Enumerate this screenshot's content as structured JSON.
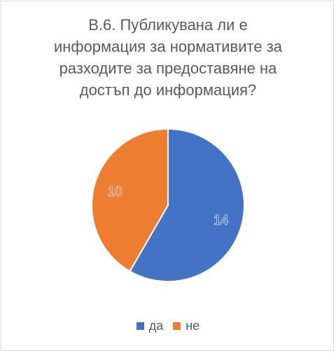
{
  "title_lines": [
    "В.6. Публикувана ли е",
    "информация за нормативите за",
    "разходите за предоставяне на",
    "достъп до информация?"
  ],
  "colors": {
    "да": "#4472c4",
    "не": "#ed7d31"
  },
  "chart_data": {
    "type": "pie",
    "title": "В.6. Публикувана ли е информация за нормативите за разходите за предоставяне на достъп до информация?",
    "categories": [
      "да",
      "не"
    ],
    "values": [
      14,
      10
    ],
    "data_labels": [
      "14",
      "10"
    ],
    "legend_position": "bottom"
  }
}
